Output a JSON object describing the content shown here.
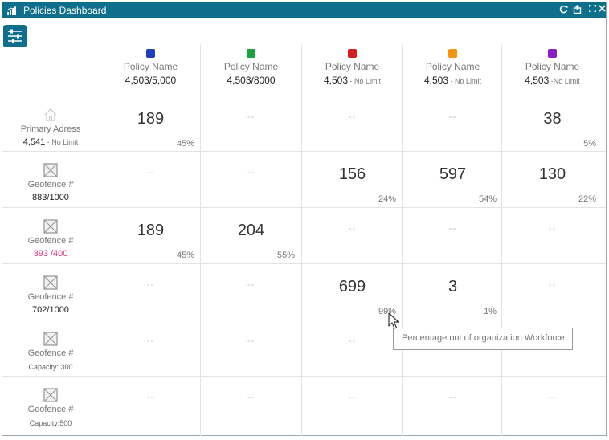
{
  "window": {
    "title": "Policies Dashboard",
    "icons": {
      "app": "bar-chart-icon",
      "refresh": "refresh-icon",
      "export": "export-icon",
      "expand": "expand-icon",
      "close": "close-icon"
    }
  },
  "filter_button": {
    "icon": "sliders-icon"
  },
  "columns": [
    {
      "color": "#1f3fbf",
      "name": "Policy Name",
      "value": "4,503/5,000",
      "suffix": ""
    },
    {
      "color": "#18a340",
      "name": "Policy Name",
      "value": "4,503/8000",
      "suffix": ""
    },
    {
      "color": "#d81c1c",
      "name": "Policy Name",
      "value": "4,503",
      "suffix": " - No Limit"
    },
    {
      "color": "#f5950f",
      "name": "Policy Name",
      "value": "4,503",
      "suffix": " - No Limit"
    },
    {
      "color": "#8a1fc4",
      "name": "Policy Name",
      "value": "4,503",
      "suffix": " -No Limit"
    }
  ],
  "rows": [
    {
      "icon": "home-icon",
      "label": "Primary Adress",
      "value": "4,541",
      "suffix": " - No Limit",
      "alert": false,
      "caption": "",
      "cells": [
        {
          "v": "189",
          "p": "45%"
        },
        {
          "v": "--",
          "p": ""
        },
        {
          "v": "--",
          "p": ""
        },
        {
          "v": "--",
          "p": ""
        },
        {
          "v": "38",
          "p": "5%"
        }
      ]
    },
    {
      "icon": "geofence-icon",
      "label": "Geofence #",
      "value": "883/1000",
      "suffix": "",
      "alert": false,
      "caption": "",
      "cells": [
        {
          "v": "--",
          "p": ""
        },
        {
          "v": "--",
          "p": ""
        },
        {
          "v": "156",
          "p": "24%"
        },
        {
          "v": "597",
          "p": "54%"
        },
        {
          "v": "130",
          "p": "22%"
        }
      ]
    },
    {
      "icon": "geofence-icon",
      "label": "Geofence #",
      "value": "393 /400",
      "suffix": "",
      "alert": true,
      "caption": "",
      "cells": [
        {
          "v": "189",
          "p": "45%"
        },
        {
          "v": "204",
          "p": "55%"
        },
        {
          "v": "--",
          "p": ""
        },
        {
          "v": "--",
          "p": ""
        },
        {
          "v": "--",
          "p": ""
        }
      ]
    },
    {
      "icon": "geofence-icon",
      "label": "Geofence #",
      "value": "702/1000",
      "suffix": "",
      "alert": false,
      "caption": "",
      "cells": [
        {
          "v": "--",
          "p": ""
        },
        {
          "v": "--",
          "p": ""
        },
        {
          "v": "699",
          "p": "99%"
        },
        {
          "v": "3",
          "p": "1%"
        },
        {
          "v": "--",
          "p": ""
        }
      ]
    },
    {
      "icon": "geofence-icon",
      "label": "Geofence #",
      "value": "",
      "suffix": "",
      "alert": false,
      "caption": "Capacity: 300",
      "cells": [
        {
          "v": "--",
          "p": ""
        },
        {
          "v": "--",
          "p": ""
        },
        {
          "v": "--",
          "p": ""
        },
        {
          "v": "",
          "p": ""
        },
        {
          "v": "",
          "p": ""
        }
      ]
    },
    {
      "icon": "geofence-icon",
      "label": "Geofence #",
      "value": "",
      "suffix": "",
      "alert": false,
      "caption": "Capacity:500",
      "cells": [
        {
          "v": "--",
          "p": ""
        },
        {
          "v": "--",
          "p": ""
        },
        {
          "v": "--",
          "p": ""
        },
        {
          "v": "--",
          "p": ""
        },
        {
          "v": "--",
          "p": ""
        }
      ]
    }
  ],
  "tooltip": {
    "text": "Percentage out of organization Workforce",
    "pointer": "arrow-cursor-icon"
  }
}
